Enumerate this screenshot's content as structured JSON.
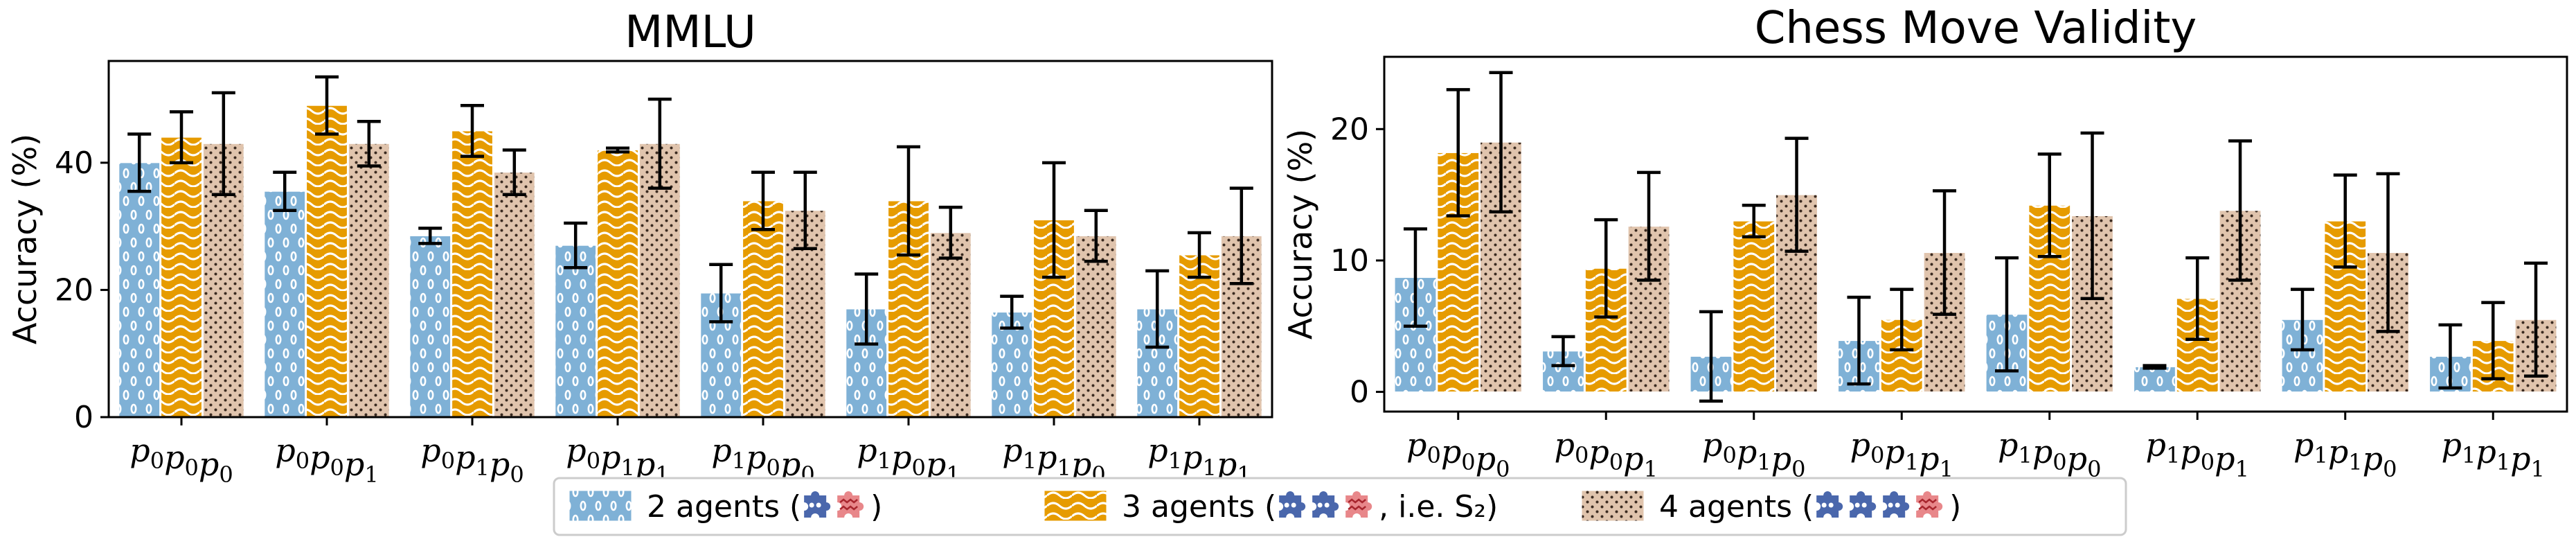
{
  "legend": {
    "items": [
      {
        "label": "2 agents",
        "pattern": "hatch-2",
        "icons": [
          "puzzle-blue",
          "puzzle-red"
        ],
        "suffix": ""
      },
      {
        "label": "3 agents",
        "pattern": "hatch-3",
        "icons": [
          "puzzle-blue",
          "puzzle-blue",
          "puzzle-red"
        ],
        "suffix": ", i.e. S₂"
      },
      {
        "label": "4 agents",
        "pattern": "hatch-4",
        "icons": [
          "puzzle-blue",
          "puzzle-blue",
          "puzzle-blue",
          "puzzle-red"
        ],
        "suffix": ""
      }
    ],
    "placement": "bottom-center",
    "colors": {
      "puzzle-blue": "#4a67ac",
      "puzzle-red": "#e8878a"
    }
  },
  "colors": {
    "2 agents": "#7fb1d6",
    "3 agents": "#e69b00",
    "4 agents": "#e0c4ad"
  },
  "chart_data": [
    {
      "type": "bar",
      "title": "MMLU",
      "ylabel": "Accuracy (%)",
      "xlabel": "",
      "ylim": [
        0,
        56
      ],
      "yticks": [
        0,
        20,
        40
      ],
      "grid": false,
      "categories": [
        [
          "p",
          "0",
          "p",
          "0",
          "p",
          "0"
        ],
        [
          "p",
          "0",
          "p",
          "0",
          "p",
          "1"
        ],
        [
          "p",
          "0",
          "p",
          "1",
          "p",
          "0"
        ],
        [
          "p",
          "0",
          "p",
          "1",
          "p",
          "1"
        ],
        [
          "p",
          "1",
          "p",
          "0",
          "p",
          "0"
        ],
        [
          "p",
          "1",
          "p",
          "0",
          "p",
          "1"
        ],
        [
          "p",
          "1",
          "p",
          "1",
          "p",
          "0"
        ],
        [
          "p",
          "1",
          "p",
          "1",
          "p",
          "1"
        ]
      ],
      "series": [
        {
          "name": "2 agents",
          "values": [
            40.0,
            35.5,
            28.5,
            27.0,
            19.5,
            17.0,
            16.5,
            17.0
          ],
          "err": [
            4.5,
            3.0,
            1.2,
            3.5,
            4.5,
            5.5,
            2.5,
            6.0
          ]
        },
        {
          "name": "3 agents",
          "values": [
            44.0,
            49.0,
            45.0,
            42.0,
            34.0,
            34.0,
            31.0,
            25.5
          ],
          "err": [
            4.0,
            4.5,
            4.0,
            0.3,
            4.5,
            8.5,
            9.0,
            3.5
          ]
        },
        {
          "name": "4 agents",
          "values": [
            43.0,
            43.0,
            38.5,
            43.0,
            32.5,
            29.0,
            28.5,
            28.5
          ],
          "err": [
            8.0,
            3.5,
            3.5,
            7.0,
            6.0,
            4.0,
            4.0,
            7.5
          ]
        }
      ]
    },
    {
      "type": "bar",
      "title": "Chess Move Validity",
      "ylabel": "Accuracy (%)",
      "xlabel": "",
      "ylim": [
        -1.5,
        25.5
      ],
      "yticks": [
        0,
        10,
        20
      ],
      "grid": false,
      "categories": [
        [
          "p",
          "0",
          "p",
          "0",
          "p",
          "0"
        ],
        [
          "p",
          "0",
          "p",
          "0",
          "p",
          "1"
        ],
        [
          "p",
          "0",
          "p",
          "1",
          "p",
          "0"
        ],
        [
          "p",
          "0",
          "p",
          "1",
          "p",
          "1"
        ],
        [
          "p",
          "1",
          "p",
          "0",
          "p",
          "0"
        ],
        [
          "p",
          "1",
          "p",
          "0",
          "p",
          "1"
        ],
        [
          "p",
          "1",
          "p",
          "1",
          "p",
          "0"
        ],
        [
          "p",
          "1",
          "p",
          "1",
          "p",
          "1"
        ]
      ],
      "series": [
        {
          "name": "2 agents",
          "values": [
            8.7,
            3.1,
            2.7,
            3.9,
            5.9,
            1.9,
            5.5,
            2.7
          ],
          "err": [
            3.7,
            1.1,
            3.4,
            3.3,
            4.3,
            0.1,
            2.3,
            2.4
          ]
        },
        {
          "name": "3 agents",
          "values": [
            18.2,
            9.4,
            13.0,
            5.5,
            14.2,
            7.1,
            13.0,
            3.9
          ],
          "err": [
            4.8,
            3.7,
            1.2,
            2.3,
            3.9,
            3.1,
            3.5,
            2.9
          ]
        },
        {
          "name": "4 agents",
          "values": [
            19.0,
            12.6,
            15.0,
            10.6,
            13.4,
            13.8,
            10.6,
            5.5
          ],
          "err": [
            5.3,
            4.1,
            4.3,
            4.7,
            6.3,
            5.3,
            6.0,
            4.3
          ]
        }
      ]
    }
  ]
}
